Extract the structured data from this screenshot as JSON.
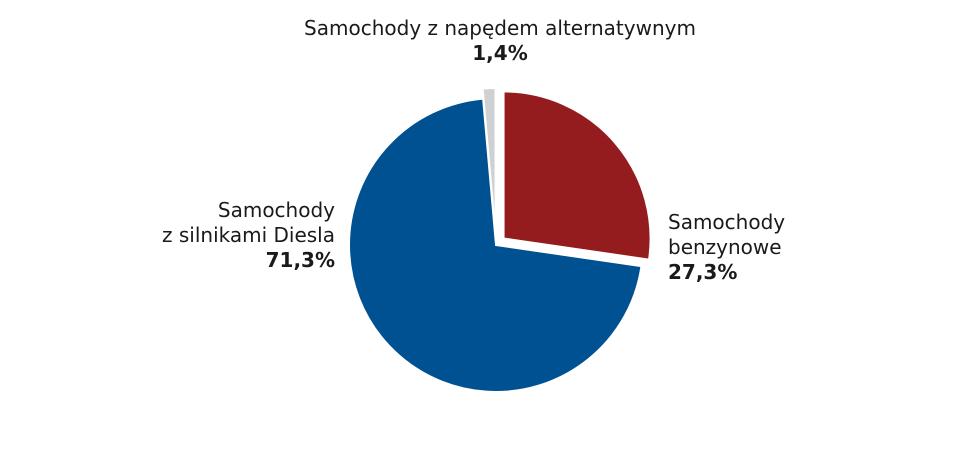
{
  "chart_data": {
    "type": "pie",
    "slices": [
      {
        "label": "Samochody benzynowe",
        "value": 27.3,
        "value_label": "27,3%",
        "color": "#941b1e",
        "exploded": true
      },
      {
        "label": "Samochody z silnikami Diesla",
        "value": 71.3,
        "value_label": "71,3%",
        "color": "#005192",
        "exploded": false
      },
      {
        "label": "Samochody z napędem alternatywnym",
        "value": 1.4,
        "value_label": "1,4%",
        "color": "#cfd0d2",
        "exploded": true
      }
    ]
  },
  "labels": {
    "petrol_line1": "Samochody",
    "petrol_line2": "benzynowe",
    "petrol_pct": "27,3%",
    "diesel_line1": "Samochody",
    "diesel_line2": "z silnikami Diesla",
    "diesel_pct": "71,3%",
    "alt_name": "Samochody z napędem alternatywnym",
    "alt_pct": "1,4%"
  }
}
